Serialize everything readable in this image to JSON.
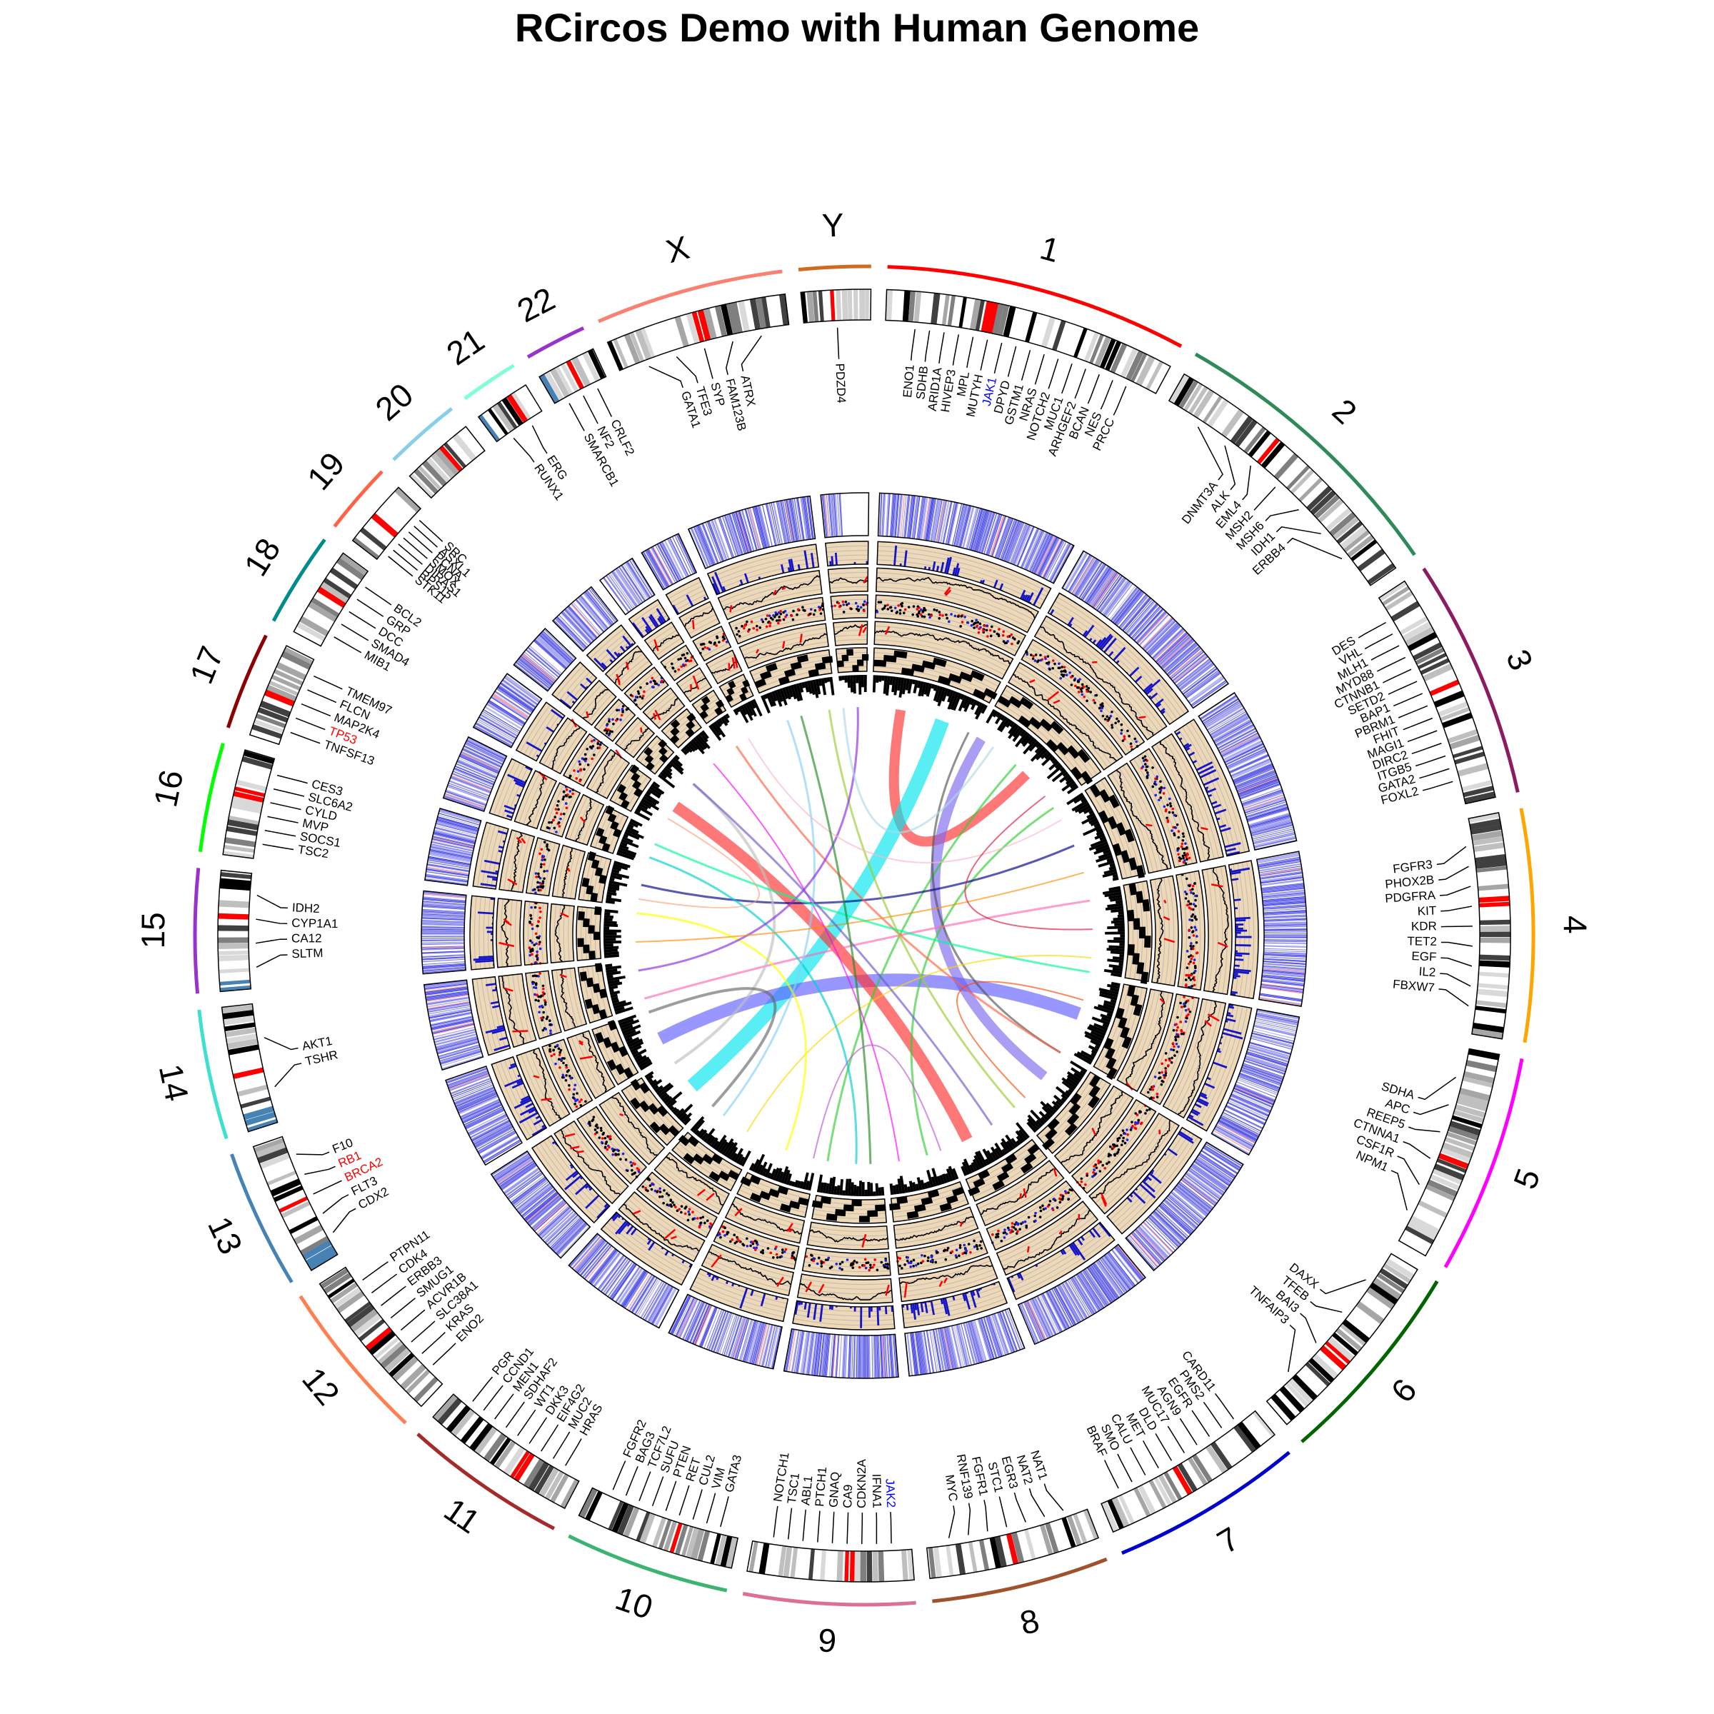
{
  "title": "RCircos Demo with Human Genome",
  "colors": {
    "track_bg": "#EED8B6",
    "track_grid": "#BBBBBB",
    "heatmap": "#3A3AE0",
    "histogram": "#1414C8",
    "highlight_red": "#FF0000",
    "gene_blue": "#0000FF"
  },
  "chromosomes": [
    {
      "name": "1",
      "size": 249,
      "color": "#FF0000"
    },
    {
      "name": "2",
      "size": 243,
      "color": "#2E8B57"
    },
    {
      "name": "3",
      "size": 198,
      "color": "#8B1C62"
    },
    {
      "name": "4",
      "size": 191,
      "color": "#FFA500"
    },
    {
      "name": "5",
      "size": 181,
      "color": "#FF00FF"
    },
    {
      "name": "6",
      "size": 171,
      "color": "#006400"
    },
    {
      "name": "7",
      "size": 159,
      "color": "#0000CD"
    },
    {
      "name": "8",
      "size": 146,
      "color": "#A0522D"
    },
    {
      "name": "9",
      "size": 141,
      "color": "#DB7093"
    },
    {
      "name": "10",
      "size": 136,
      "color": "#3CB371"
    },
    {
      "name": "11",
      "size": 135,
      "color": "#A52A2A"
    },
    {
      "name": "12",
      "size": 134,
      "color": "#FF7F50"
    },
    {
      "name": "13",
      "size": 115,
      "color": "#4682B4"
    },
    {
      "name": "14",
      "size": 107,
      "color": "#40E0D0"
    },
    {
      "name": "15",
      "size": 102,
      "color": "#9932CC"
    },
    {
      "name": "16",
      "size": 90,
      "color": "#00FF00"
    },
    {
      "name": "17",
      "size": 81,
      "color": "#8B0000"
    },
    {
      "name": "18",
      "size": 78,
      "color": "#008B8B"
    },
    {
      "name": "19",
      "size": 59,
      "color": "#FF6347"
    },
    {
      "name": "20",
      "size": 63,
      "color": "#87CEEB"
    },
    {
      "name": "21",
      "size": 48,
      "color": "#7FFFD4"
    },
    {
      "name": "22",
      "size": 51,
      "color": "#9932CC"
    },
    {
      "name": "X",
      "size": 155,
      "color": "#FA8072"
    },
    {
      "name": "Y",
      "size": 59,
      "color": "#D2691E"
    }
  ],
  "genes": [
    {
      "chr": "1",
      "names": [
        "ENO1",
        "SDHB",
        "ARID1A",
        "HIVEP3",
        "MPL",
        "MUTYH",
        "JAK1",
        "DPYD",
        "GSTM1",
        "NRAS",
        "NOTCH2",
        "MUC1",
        "ARHGEF2",
        "BCAN",
        "NES",
        "PRCC"
      ],
      "blue": [
        "JAK1"
      ],
      "red": []
    },
    {
      "chr": "2",
      "names": [
        "DNMT3A",
        "ALK",
        "EML4",
        "MSH2",
        "MSH6",
        "IDH1",
        "ERBB4"
      ],
      "blue": [],
      "red": []
    },
    {
      "chr": "3",
      "names": [
        "DES",
        "VHL",
        "MLH1",
        "MYD88",
        "CTNNB1",
        "SETD2",
        "BAP1",
        "PBRM1",
        "FHIT",
        "MAGI1",
        "DIRC2",
        "ITGB5",
        "GATA2",
        "FOXL2"
      ],
      "blue": [],
      "red": []
    },
    {
      "chr": "4",
      "names": [
        "FGFR3",
        "PHOX2B",
        "PDGFRA",
        "KIT",
        "KDR",
        "TET2",
        "EGF",
        "IL2",
        "FBXW7"
      ],
      "blue": [],
      "red": []
    },
    {
      "chr": "5",
      "names": [
        "SDHA",
        "APC",
        "REEP5",
        "CTNNA1",
        "CSF1R",
        "NPM1"
      ],
      "blue": [],
      "red": []
    },
    {
      "chr": "6",
      "names": [
        "DAXX",
        "TFEB",
        "BAI3",
        "TNFAIP3"
      ],
      "blue": [],
      "red": []
    },
    {
      "chr": "7",
      "names": [
        "CARD11",
        "PMS2",
        "EGFR",
        "AGN9",
        "MUC17",
        "DLD",
        "MET",
        "CALU",
        "SMO",
        "BRAF"
      ],
      "blue": [],
      "red": []
    },
    {
      "chr": "8",
      "names": [
        "NAT1",
        "NAT2",
        "EGR3",
        "STC1",
        "FGFR1",
        "RNF139",
        "MYC"
      ],
      "blue": [],
      "red": []
    },
    {
      "chr": "9",
      "names": [
        "JAK2",
        "IFNA1",
        "CDKN2A",
        "CA9",
        "GNAQ",
        "PTCH1",
        "ABL1",
        "TSC1",
        "NOTCH1"
      ],
      "blue": [
        "JAK2"
      ],
      "red": []
    },
    {
      "chr": "10",
      "names": [
        "GATA3",
        "VIM",
        "CUL2",
        "RET",
        "PTEN",
        "SUFU",
        "TCF7L2",
        "BAG3",
        "FGFR2"
      ],
      "blue": [],
      "red": []
    },
    {
      "chr": "11",
      "names": [
        "HRAS",
        "MUC2",
        "EIF4G2",
        "DKK3",
        "WT1",
        "SDHAF2",
        "MEN1",
        "CCND1",
        "PGR"
      ],
      "blue": [],
      "red": []
    },
    {
      "chr": "12",
      "names": [
        "ENO2",
        "KRAS",
        "SLC38A1",
        "ACVR1B",
        "SMUG1",
        "ERBB3",
        "CDK4",
        "PTPN11"
      ],
      "blue": [],
      "red": []
    },
    {
      "chr": "13",
      "names": [
        "CDX2",
        "FLT3",
        "BRCA2",
        "RB1",
        "F10"
      ],
      "blue": [],
      "red": [
        "BRCA2",
        "RB1"
      ]
    },
    {
      "chr": "14",
      "names": [
        "TSHR",
        "AKT1"
      ],
      "blue": [],
      "red": []
    },
    {
      "chr": "15",
      "names": [
        "SLTM",
        "CA12",
        "CYP1A1",
        "IDH2"
      ],
      "blue": [],
      "red": []
    },
    {
      "chr": "16",
      "names": [
        "TSC2",
        "SOCS1",
        "MVP",
        "CYLD",
        "SLC6A2",
        "CES3"
      ],
      "blue": [],
      "red": []
    },
    {
      "chr": "17",
      "names": [
        "TNFSF13",
        "TP53",
        "MAP2K4",
        "FLCN",
        "TMEM97"
      ],
      "blue": [],
      "red": [
        "TP53"
      ]
    },
    {
      "chr": "18",
      "names": [
        "MIB1",
        "SMAD4",
        "DCC",
        "GRP",
        "BCL2"
      ],
      "blue": [],
      "red": []
    },
    {
      "chr": "19",
      "names": [
        "STK11",
        "RPS15",
        "DIRAS1",
        "SMOX",
        "PCNA",
        "ASXL1",
        "SRC"
      ],
      "blue": [],
      "red": []
    },
    {
      "chr": "20",
      "names": [],
      "blue": [],
      "red": []
    },
    {
      "chr": "21",
      "names": [
        "RUNX1",
        "ERG"
      ],
      "blue": [],
      "red": []
    },
    {
      "chr": "22",
      "names": [
        "SMARCB1",
        "NF2",
        "CRLF2"
      ],
      "blue": [],
      "red": []
    },
    {
      "chr": "X",
      "names": [
        "GATA1",
        "TFE3",
        "SYP",
        "FAM123B",
        "ATRX"
      ],
      "blue": [],
      "red": []
    },
    {
      "chr": "Y",
      "names": [
        "PDZD4"
      ],
      "blue": [],
      "red": []
    }
  ],
  "links": [
    {
      "a": 0.02,
      "b": 0.12,
      "color": "#FF3030",
      "width": 14
    },
    {
      "a": 0.05,
      "b": 0.63,
      "color": "#00E5EE",
      "width": 20
    },
    {
      "a": 0.08,
      "b": 0.35,
      "color": "#7B68EE",
      "width": 14
    },
    {
      "a": 0.3,
      "b": 0.67,
      "color": "#6060FF",
      "width": 18
    },
    {
      "a": 0.42,
      "b": 0.84,
      "color": "#FF3030",
      "width": 16
    },
    {
      "a": 0.11,
      "b": 0.52,
      "color": "#32CD32",
      "width": 3
    },
    {
      "a": 0.15,
      "b": 0.45,
      "color": "#32CD32",
      "width": 3
    },
    {
      "a": 0.07,
      "b": 0.33,
      "color": "#555555",
      "width": 3
    },
    {
      "a": 0.18,
      "b": 0.78,
      "color": "#00008B",
      "width": 3
    },
    {
      "a": 0.22,
      "b": 0.7,
      "color": "#FF69B4",
      "width": 3
    },
    {
      "a": 0.26,
      "b": 0.58,
      "color": "#FFD700",
      "width": 2
    },
    {
      "a": 0.33,
      "b": 0.9,
      "color": "#FF6347",
      "width": 3
    },
    {
      "a": 0.38,
      "b": 0.97,
      "color": "#9ACD32",
      "width": 3
    },
    {
      "a": 0.47,
      "b": 0.88,
      "color": "#FF00FF",
      "width": 2
    },
    {
      "a": 0.5,
      "b": 0.8,
      "color": "#00CED1",
      "width": 3
    },
    {
      "a": 0.55,
      "b": 0.76,
      "color": "#FFFF00",
      "width": 3
    },
    {
      "a": 0.6,
      "b": 0.94,
      "color": "#87CEFA",
      "width": 3
    },
    {
      "a": 0.65,
      "b": 0.86,
      "color": "#BEBEBE",
      "width": 4
    },
    {
      "a": 0.72,
      "b": 0.99,
      "color": "#8A2BE2",
      "width": 3
    },
    {
      "a": 0.74,
      "b": 0.2,
      "color": "#FF8C00",
      "width": 2
    },
    {
      "a": 0.81,
      "b": 0.27,
      "color": "#00FA9A",
      "width": 3
    },
    {
      "a": 0.86,
      "b": 0.4,
      "color": "#6A5ACD",
      "width": 3
    },
    {
      "a": 0.91,
      "b": 0.16,
      "color": "#FFB6C1",
      "width": 2
    },
    {
      "a": 0.95,
      "b": 0.49,
      "color": "#228B22",
      "width": 3
    },
    {
      "a": 0.98,
      "b": 0.09,
      "color": "#ADD8E6",
      "width": 3
    },
    {
      "a": 0.14,
      "b": 0.24,
      "color": "#DC143C",
      "width": 2
    },
    {
      "a": 0.29,
      "b": 0.37,
      "color": "#FF4500",
      "width": 2
    },
    {
      "a": 0.44,
      "b": 0.53,
      "color": "#BA55D3",
      "width": 2
    },
    {
      "a": 0.61,
      "b": 0.69,
      "color": "#696969",
      "width": 4
    },
    {
      "a": 0.77,
      "b": 0.83,
      "color": "#FFA07A",
      "width": 2
    }
  ]
}
